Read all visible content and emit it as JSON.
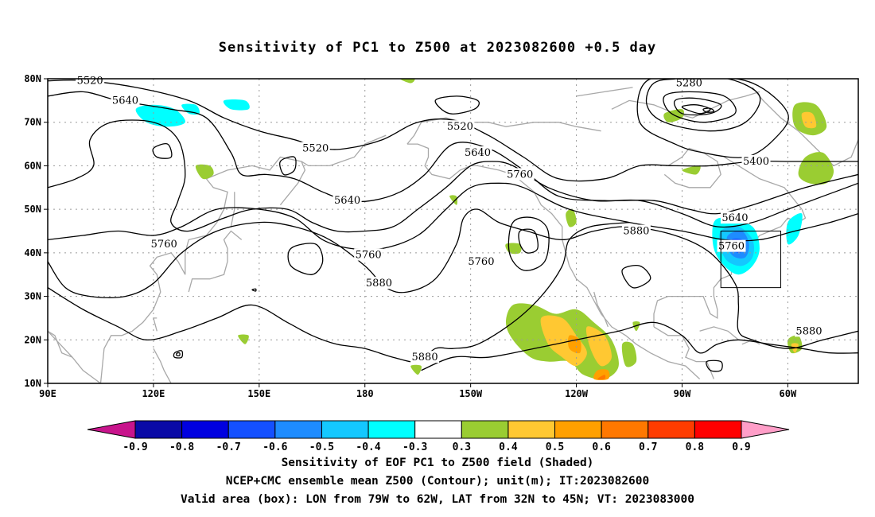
{
  "title": "Sensitivity of PC1 to Z500 at 2023082600 +0.5 day",
  "lat_ticks": [
    "80N",
    "70N",
    "60N",
    "50N",
    "40N",
    "30N",
    "20N",
    "10N"
  ],
  "lon_ticks": [
    "90E",
    "120E",
    "150E",
    "180",
    "150W",
    "120W",
    "90W",
    "60W"
  ],
  "colorbar": {
    "labels": [
      "-0.9",
      "-0.8",
      "-0.7",
      "-0.6",
      "-0.5",
      "-0.4",
      "-0.3",
      "0.3",
      "0.4",
      "0.5",
      "0.6",
      "0.7",
      "0.8",
      "0.9"
    ],
    "colors": [
      "#0a0aa6",
      "#0000e0",
      "#1450ff",
      "#1e8cff",
      "#14c8ff",
      "#00ffff",
      "#ffffff",
      "#9acd32",
      "#ffc832",
      "#ffa000",
      "#ff7800",
      "#ff3c00",
      "#ff0000"
    ],
    "low_arrow": "#c8148c",
    "high_arrow": "#ff9ec8"
  },
  "contour_labels": [
    {
      "text": "5520",
      "lat": 79.5,
      "lon": 102
    },
    {
      "text": "5640",
      "lat": 75,
      "lon": 112
    },
    {
      "text": "5520",
      "lat": 64,
      "lon": 166
    },
    {
      "text": "5640",
      "lat": 52,
      "lon": 175
    },
    {
      "text": "5760",
      "lat": 42,
      "lon": 123
    },
    {
      "text": "5760",
      "lat": 39.5,
      "lon": 181
    },
    {
      "text": "5880",
      "lat": 33,
      "lon": 184
    },
    {
      "text": "5520",
      "lat": 69,
      "lon": 207
    },
    {
      "text": "5640",
      "lat": 63,
      "lon": 212
    },
    {
      "text": "5760",
      "lat": 58,
      "lon": 224
    },
    {
      "text": "5760",
      "lat": 38,
      "lon": 213
    },
    {
      "text": "5880",
      "lat": 45,
      "lon": 257
    },
    {
      "text": "5280",
      "lat": 79,
      "lon": 272
    },
    {
      "text": "5400",
      "lat": 61,
      "lon": 291
    },
    {
      "text": "5640",
      "lat": 48,
      "lon": 285
    },
    {
      "text": "5760",
      "lat": 41.5,
      "lon": 284
    },
    {
      "text": "5880",
      "lat": 22,
      "lon": 306
    },
    {
      "text": "5880",
      "lat": 16,
      "lon": 197
    }
  ],
  "footer": {
    "line1": "Sensitivity of EOF PC1 to Z500 field (Shaded)",
    "line2": "NCEP+CMC ensemble mean Z500 (Contour); unit(m); IT:2023082600",
    "line3": "Valid area (box): LON from 79W to 62W, LAT from 32N to 45N; VT: 2023083000"
  },
  "valid_box": {
    "lon_min": 281,
    "lon_max": 298,
    "lat_min": 32,
    "lat_max": 45
  }
}
